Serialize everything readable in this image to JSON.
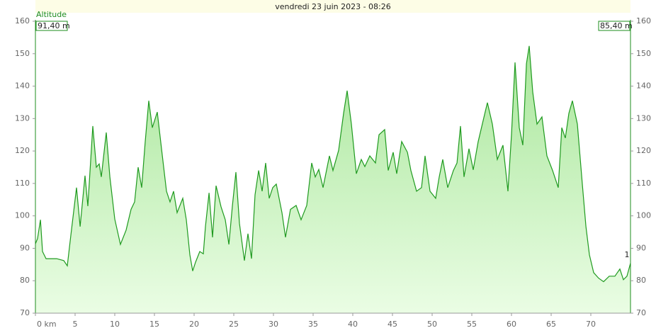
{
  "chart_data": {
    "type": "area",
    "title": "vendredi 23 juin 2023 - 08:26",
    "ylabel": "Altitude",
    "start_label": "91,40 m",
    "end_label": "85,40 m",
    "annotation": "1",
    "line_color": "#1f9a1f",
    "fill_top": "#a8e69a",
    "fill_bottom": "#eafde4",
    "xlim": [
      0,
      75
    ],
    "ylim": [
      70,
      160
    ],
    "xticks": [
      {
        "value": 0,
        "label": "0 km"
      },
      5,
      10,
      15,
      20,
      25,
      30,
      35,
      40,
      45,
      50,
      55,
      60,
      65,
      70
    ],
    "yticks": [
      70,
      80,
      90,
      100,
      110,
      120,
      130,
      140,
      150,
      160
    ],
    "x": [
      0,
      0.27,
      0.63,
      0.89,
      1.34,
      2.68,
      3.57,
      4.02,
      4.46,
      5.18,
      5.63,
      6.25,
      6.61,
      7.23,
      7.68,
      8.04,
      8.3,
      8.93,
      9.38,
      10,
      10.71,
      11.43,
      12.05,
      12.5,
      12.95,
      13.39,
      13.84,
      14.29,
      14.73,
      15.36,
      15.89,
      16.52,
      16.96,
      17.41,
      17.86,
      18.57,
      19.02,
      19.46,
      19.82,
      20.18,
      20.71,
      21.16,
      21.43,
      21.88,
      22.32,
      22.77,
      23.39,
      23.93,
      24.38,
      24.82,
      25.27,
      25.71,
      26.34,
      26.79,
      27.23,
      27.68,
      28.13,
      28.57,
      29.02,
      29.46,
      29.91,
      30.36,
      31.07,
      31.52,
      32.14,
      32.86,
      33.48,
      34.2,
      34.82,
      35.27,
      35.71,
      36.25,
      37.05,
      37.5,
      38.21,
      38.84,
      39.29,
      39.82,
      40.45,
      41.07,
      41.52,
      42.14,
      42.86,
      43.3,
      44.02,
      44.46,
      45.09,
      45.54,
      46.16,
      46.88,
      47.32,
      48.04,
      48.66,
      49.11,
      49.73,
      50.45,
      50.89,
      51.34,
      51.96,
      52.68,
      53.13,
      53.57,
      54.02,
      54.64,
      55.18,
      55.8,
      56.43,
      56.96,
      57.59,
      58.21,
      58.93,
      59.55,
      60,
      60.45,
      60.98,
      61.43,
      61.88,
      62.23,
      62.68,
      63.21,
      63.84,
      64.46,
      65.18,
      65.89,
      66.34,
      66.79,
      67.23,
      67.68,
      68.3,
      68.93,
      69.38,
      69.82,
      70.36,
      70.98,
      71.61,
      72.32,
      73.04,
      73.66,
      74.11,
      74.55,
      75
    ],
    "values": [
      91.4,
      93,
      98.8,
      89,
      86.8,
      86.8,
      86.2,
      84.6,
      94,
      108.7,
      96.7,
      112.4,
      103,
      127.7,
      115,
      116,
      112,
      125.7,
      112,
      99,
      91.2,
      95.6,
      102,
      104.3,
      115,
      108.7,
      122.9,
      135.5,
      127.2,
      132,
      120.7,
      107.6,
      104.3,
      107.6,
      101,
      105.4,
      98.8,
      88,
      83,
      85.7,
      89,
      88.3,
      96.7,
      107.1,
      93.4,
      109.3,
      102.8,
      98.8,
      91.2,
      103,
      113.5,
      97.7,
      86.2,
      94.5,
      86.8,
      106.5,
      114,
      107.6,
      116.3,
      105.4,
      108.7,
      109.8,
      101,
      93.4,
      102,
      103.2,
      98.8,
      103.2,
      116.3,
      112,
      114.3,
      108.7,
      118.5,
      114,
      120.2,
      131.6,
      138.6,
      128.3,
      113,
      117.4,
      115.2,
      118.5,
      116.3,
      125,
      126.6,
      114,
      119.6,
      113,
      122.9,
      119.6,
      114,
      107.6,
      108.7,
      118.5,
      107.6,
      105.4,
      112,
      117.4,
      108.7,
      114,
      116.3,
      127.7,
      112,
      120.7,
      114.2,
      122.9,
      129.4,
      134.9,
      128.3,
      117.4,
      121.8,
      107.6,
      125,
      147.3,
      127.2,
      121.8,
      146.9,
      152.4,
      138.2,
      128.3,
      130.5,
      118.5,
      114,
      108.7,
      127.2,
      124,
      131.6,
      135.5,
      128.3,
      109.8,
      96.7,
      88,
      82.5,
      80.8,
      79.7,
      81.4,
      81.4,
      83.6,
      80.3,
      81.4,
      85.4
    ]
  }
}
